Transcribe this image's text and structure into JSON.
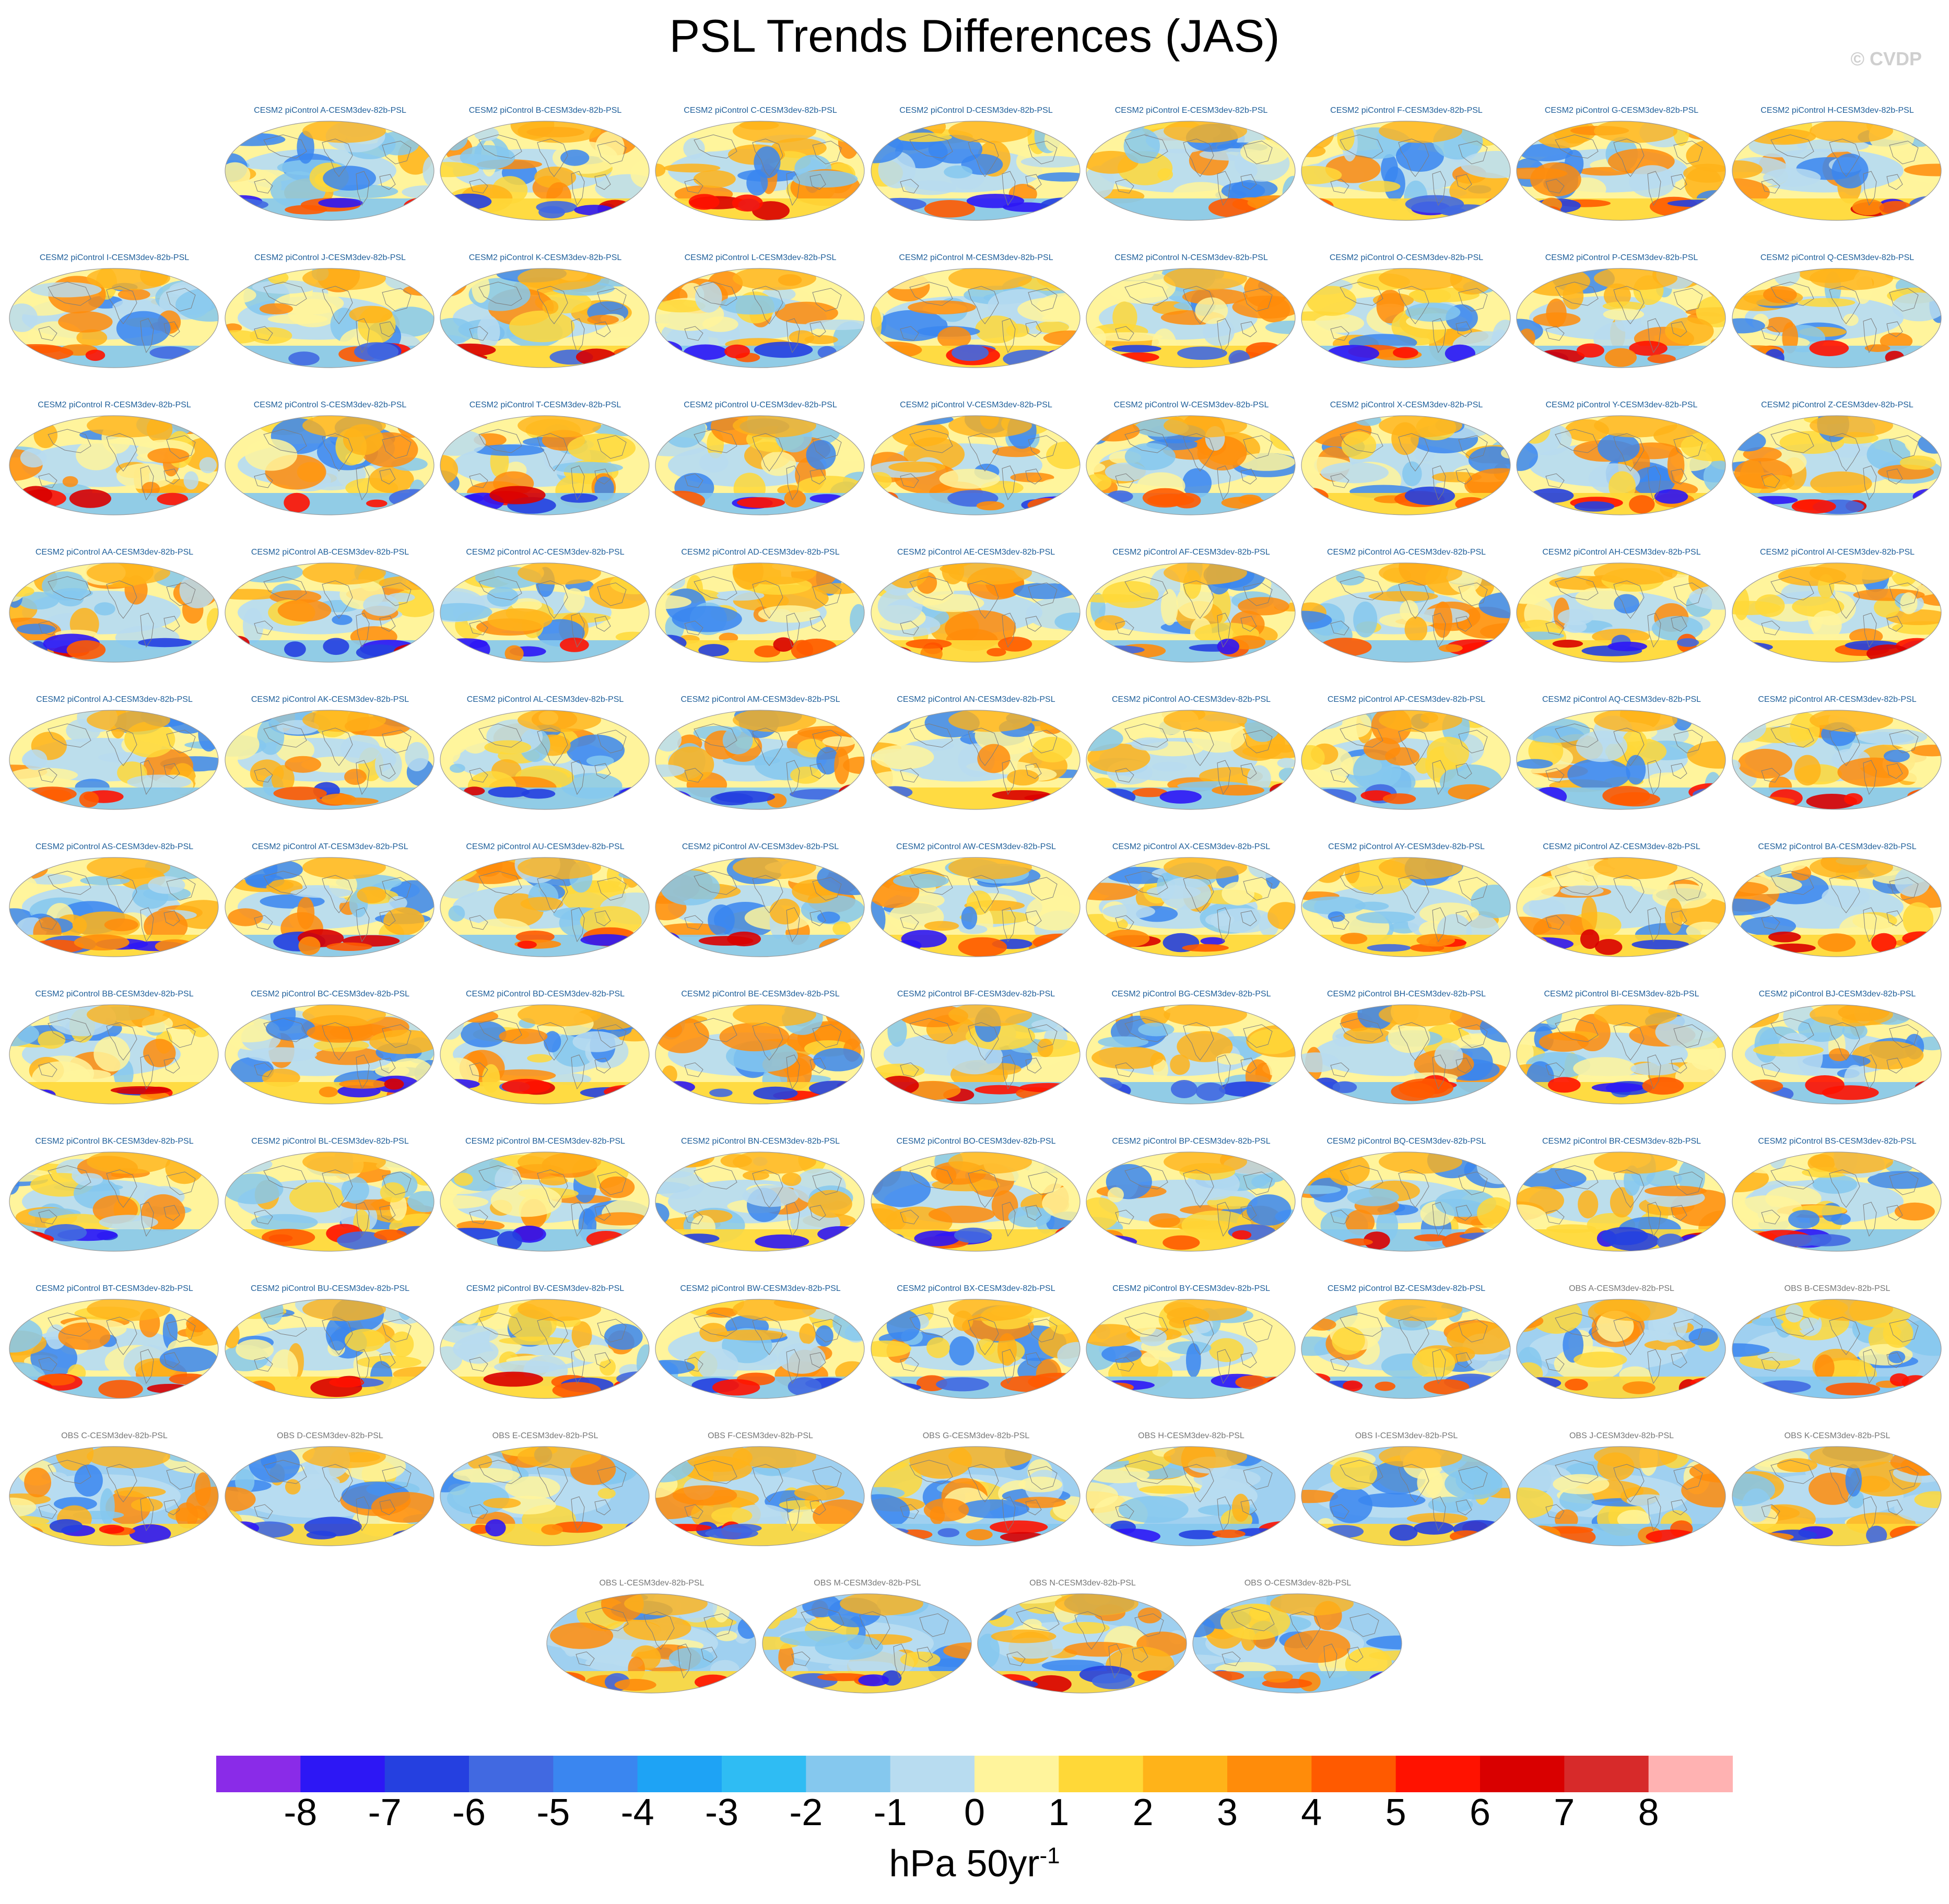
{
  "title": "PSL Trends Differences (JAS)",
  "watermark": "© CVDP",
  "chart_data": {
    "type": "heatmap",
    "title": "PSL Trends Differences (JAS)",
    "projection": "global-ellipse-map",
    "panel_suffix": "-CESM3dev-82b-PSL",
    "rows": [
      [
        "CESM2 piControl A-CESM3dev-82b-PSL",
        "CESM2 piControl B-CESM3dev-82b-PSL",
        "CESM2 piControl C-CESM3dev-82b-PSL",
        "CESM2 piControl D-CESM3dev-82b-PSL",
        "CESM2 piControl E-CESM3dev-82b-PSL",
        "CESM2 piControl F-CESM3dev-82b-PSL",
        "CESM2 piControl G-CESM3dev-82b-PSL",
        "CESM2 piControl H-CESM3dev-82b-PSL"
      ],
      [
        "CESM2 piControl I-CESM3dev-82b-PSL",
        "CESM2 piControl J-CESM3dev-82b-PSL",
        "CESM2 piControl K-CESM3dev-82b-PSL",
        "CESM2 piControl L-CESM3dev-82b-PSL",
        "CESM2 piControl M-CESM3dev-82b-PSL",
        "CESM2 piControl N-CESM3dev-82b-PSL",
        "CESM2 piControl O-CESM3dev-82b-PSL",
        "CESM2 piControl P-CESM3dev-82b-PSL",
        "CESM2 piControl Q-CESM3dev-82b-PSL"
      ],
      [
        "CESM2 piControl R-CESM3dev-82b-PSL",
        "CESM2 piControl S-CESM3dev-82b-PSL",
        "CESM2 piControl T-CESM3dev-82b-PSL",
        "CESM2 piControl U-CESM3dev-82b-PSL",
        "CESM2 piControl V-CESM3dev-82b-PSL",
        "CESM2 piControl W-CESM3dev-82b-PSL",
        "CESM2 piControl X-CESM3dev-82b-PSL",
        "CESM2 piControl Y-CESM3dev-82b-PSL",
        "CESM2 piControl Z-CESM3dev-82b-PSL"
      ],
      [
        "CESM2 piControl AA-CESM3dev-82b-PSL",
        "CESM2 piControl AB-CESM3dev-82b-PSL",
        "CESM2 piControl AC-CESM3dev-82b-PSL",
        "CESM2 piControl AD-CESM3dev-82b-PSL",
        "CESM2 piControl AE-CESM3dev-82b-PSL",
        "CESM2 piControl AF-CESM3dev-82b-PSL",
        "CESM2 piControl AG-CESM3dev-82b-PSL",
        "CESM2 piControl AH-CESM3dev-82b-PSL",
        "CESM2 piControl AI-CESM3dev-82b-PSL"
      ],
      [
        "CESM2 piControl AJ-CESM3dev-82b-PSL",
        "CESM2 piControl AK-CESM3dev-82b-PSL",
        "CESM2 piControl AL-CESM3dev-82b-PSL",
        "CESM2 piControl AM-CESM3dev-82b-PSL",
        "CESM2 piControl AN-CESM3dev-82b-PSL",
        "CESM2 piControl AO-CESM3dev-82b-PSL",
        "CESM2 piControl AP-CESM3dev-82b-PSL",
        "CESM2 piControl AQ-CESM3dev-82b-PSL",
        "CESM2 piControl AR-CESM3dev-82b-PSL"
      ],
      [
        "CESM2 piControl AS-CESM3dev-82b-PSL",
        "CESM2 piControl AT-CESM3dev-82b-PSL",
        "CESM2 piControl AU-CESM3dev-82b-PSL",
        "CESM2 piControl AV-CESM3dev-82b-PSL",
        "CESM2 piControl AW-CESM3dev-82b-PSL",
        "CESM2 piControl AX-CESM3dev-82b-PSL",
        "CESM2 piControl AY-CESM3dev-82b-PSL",
        "CESM2 piControl AZ-CESM3dev-82b-PSL",
        "CESM2 piControl BA-CESM3dev-82b-PSL"
      ],
      [
        "CESM2 piControl BB-CESM3dev-82b-PSL",
        "CESM2 piControl BC-CESM3dev-82b-PSL",
        "CESM2 piControl BD-CESM3dev-82b-PSL",
        "CESM2 piControl BE-CESM3dev-82b-PSL",
        "CESM2 piControl BF-CESM3dev-82b-PSL",
        "CESM2 piControl BG-CESM3dev-82b-PSL",
        "CESM2 piControl BH-CESM3dev-82b-PSL",
        "CESM2 piControl BI-CESM3dev-82b-PSL",
        "CESM2 piControl BJ-CESM3dev-82b-PSL"
      ],
      [
        "CESM2 piControl BK-CESM3dev-82b-PSL",
        "CESM2 piControl BL-CESM3dev-82b-PSL",
        "CESM2 piControl BM-CESM3dev-82b-PSL",
        "CESM2 piControl BN-CESM3dev-82b-PSL",
        "CESM2 piControl BO-CESM3dev-82b-PSL",
        "CESM2 piControl BP-CESM3dev-82b-PSL",
        "CESM2 piControl BQ-CESM3dev-82b-PSL",
        "CESM2 piControl BR-CESM3dev-82b-PSL",
        "CESM2 piControl BS-CESM3dev-82b-PSL"
      ],
      [
        "CESM2 piControl BT-CESM3dev-82b-PSL",
        "CESM2 piControl BU-CESM3dev-82b-PSL",
        "CESM2 piControl BV-CESM3dev-82b-PSL",
        "CESM2 piControl BW-CESM3dev-82b-PSL",
        "CESM2 piControl BX-CESM3dev-82b-PSL",
        "CESM2 piControl BY-CESM3dev-82b-PSL",
        "CESM2 piControl BZ-CESM3dev-82b-PSL",
        "OBS A-CESM3dev-82b-PSL",
        "OBS B-CESM3dev-82b-PSL"
      ],
      [
        "OBS C-CESM3dev-82b-PSL",
        "OBS D-CESM3dev-82b-PSL",
        "OBS E-CESM3dev-82b-PSL",
        "OBS F-CESM3dev-82b-PSL",
        "OBS G-CESM3dev-82b-PSL",
        "OBS H-CESM3dev-82b-PSL",
        "OBS I-CESM3dev-82b-PSL",
        "OBS J-CESM3dev-82b-PSL",
        "OBS K-CESM3dev-82b-PSL"
      ],
      [
        "OBS L-CESM3dev-82b-PSL",
        "OBS M-CESM3dev-82b-PSL",
        "OBS N-CESM3dev-82b-PSL",
        "OBS O-CESM3dev-82b-PSL"
      ]
    ],
    "title_colors": {
      "model": "#1f5f9a",
      "obs": "#777777"
    },
    "colorbar": {
      "levels": [
        "-8",
        "-7",
        "-6",
        "-5",
        "-4",
        "-3",
        "-2",
        "-1",
        "0",
        "1",
        "2",
        "3",
        "4",
        "5",
        "6",
        "7",
        "8"
      ],
      "colors": [
        "#8a2be8",
        "#2d17f5",
        "#2540e0",
        "#4169e1",
        "#3a86f0",
        "#1ea3f5",
        "#2fbcf3",
        "#85c8ee",
        "#b8dcf0",
        "#fff49c",
        "#ffd838",
        "#ffb319",
        "#ff8c0a",
        "#ff5a00",
        "#ff1200",
        "#d90000",
        "#d72a2a",
        "#ffb2b2"
      ],
      "units": "hPa 50yr",
      "units_superscript": "-1"
    }
  }
}
